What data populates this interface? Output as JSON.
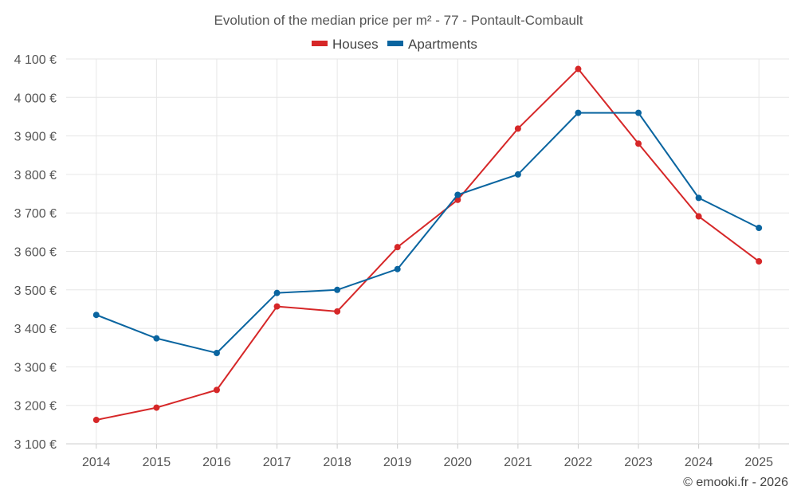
{
  "chart_data": {
    "type": "line",
    "title": "Evolution of the median price per m² - 77 - Pontault-Combault",
    "categories": [
      "2014",
      "2015",
      "2016",
      "2017",
      "2018",
      "2019",
      "2020",
      "2021",
      "2022",
      "2023",
      "2024",
      "2025"
    ],
    "series": [
      {
        "name": "Houses",
        "color": "#d62728",
        "values": [
          3162,
          3194,
          3240,
          3457,
          3444,
          3611,
          3734,
          3919,
          4074,
          3880,
          3691,
          3574
        ]
      },
      {
        "name": "Apartments",
        "color": "#0a65a0",
        "values": [
          3435,
          3374,
          3336,
          3492,
          3500,
          3554,
          3747,
          3800,
          3960,
          3960,
          3739,
          3661
        ]
      }
    ],
    "ylim": [
      3100,
      4100
    ],
    "yticks": [
      3100,
      3200,
      3300,
      3400,
      3500,
      3600,
      3700,
      3800,
      3900,
      4000,
      4100
    ],
    "ytick_labels": [
      "3 100 €",
      "3 200 €",
      "3 300 €",
      "3 400 €",
      "3 500 €",
      "3 600 €",
      "3 700 €",
      "3 800 €",
      "3 900 €",
      "4 000 €",
      "4 100 €"
    ],
    "xlabel": "",
    "ylabel": "",
    "grid": true,
    "legend_position": "top-center"
  },
  "credit": "© emooki.fr - 2026"
}
